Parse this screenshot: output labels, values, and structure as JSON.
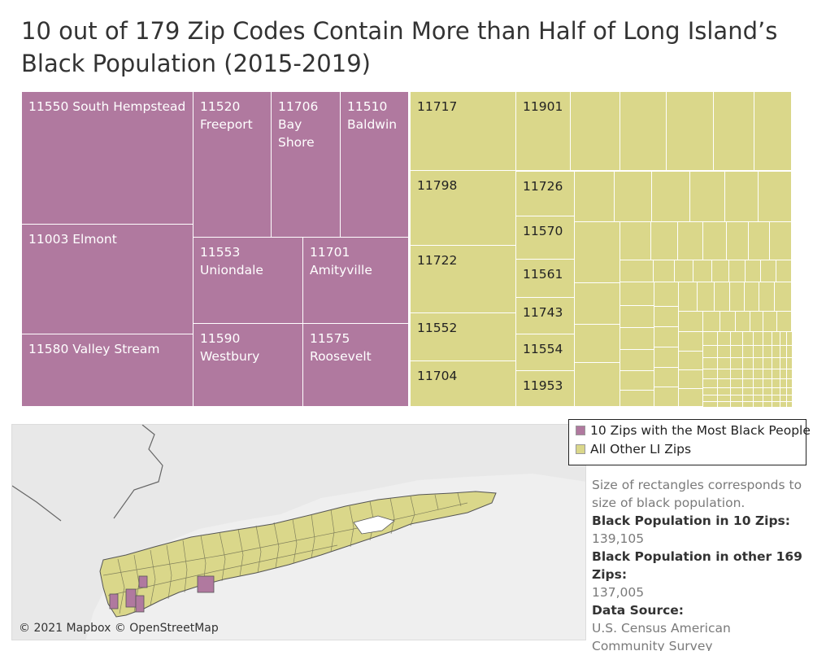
{
  "title": "10 out of 179 Zip Codes Contain More than Half of Long Island’s Black Population (2015-2019)",
  "colors": {
    "top10": "#b0799f",
    "other": "#dad78a",
    "mapLand": "#dad78a",
    "mapWater": "#ffffff",
    "mapBase": "#efefef"
  },
  "chart_data": {
    "type": "treemap",
    "title": "10 out of 179 Zip Codes Contain More than Half of Long Island’s Black Population (2015-2019)",
    "top10_labels": [
      "11550 South Hempstead",
      "11520\nFreeport",
      "11706\nBay\nShore",
      "11510\nBaldwin",
      "11003 Elmont",
      "11553\nUniondale",
      "11701\nAmityville",
      "11580 Valley Stream",
      "11590\nWestbury",
      "11575\nRoosevelt"
    ],
    "other_labels": [
      "11717",
      "11798",
      "11722",
      "11552",
      "11704",
      "11901",
      "11726",
      "11570",
      "11561",
      "11743",
      "11554",
      "11953"
    ],
    "legend": [
      {
        "name": "10 Zips with the Most Black People",
        "color": "#b0799f"
      },
      {
        "name": "All Other LI Zips",
        "color": "#dad78a"
      }
    ],
    "totals": {
      "top10": 139105,
      "other169": 137005
    }
  },
  "map": {
    "attribution": "© 2021 Mapbox © OpenStreetMap"
  },
  "notes": {
    "size_note": "Size of rectangles corresponds to size of black population.",
    "top10_label": "Black Population in 10 Zips:",
    "top10_value": "139,105",
    "other_label": "Black Population in other 169 Zips:",
    "other_value": "137,005",
    "source_label": "Data Source:",
    "source_value": "U.S. Census American Community Survey"
  }
}
